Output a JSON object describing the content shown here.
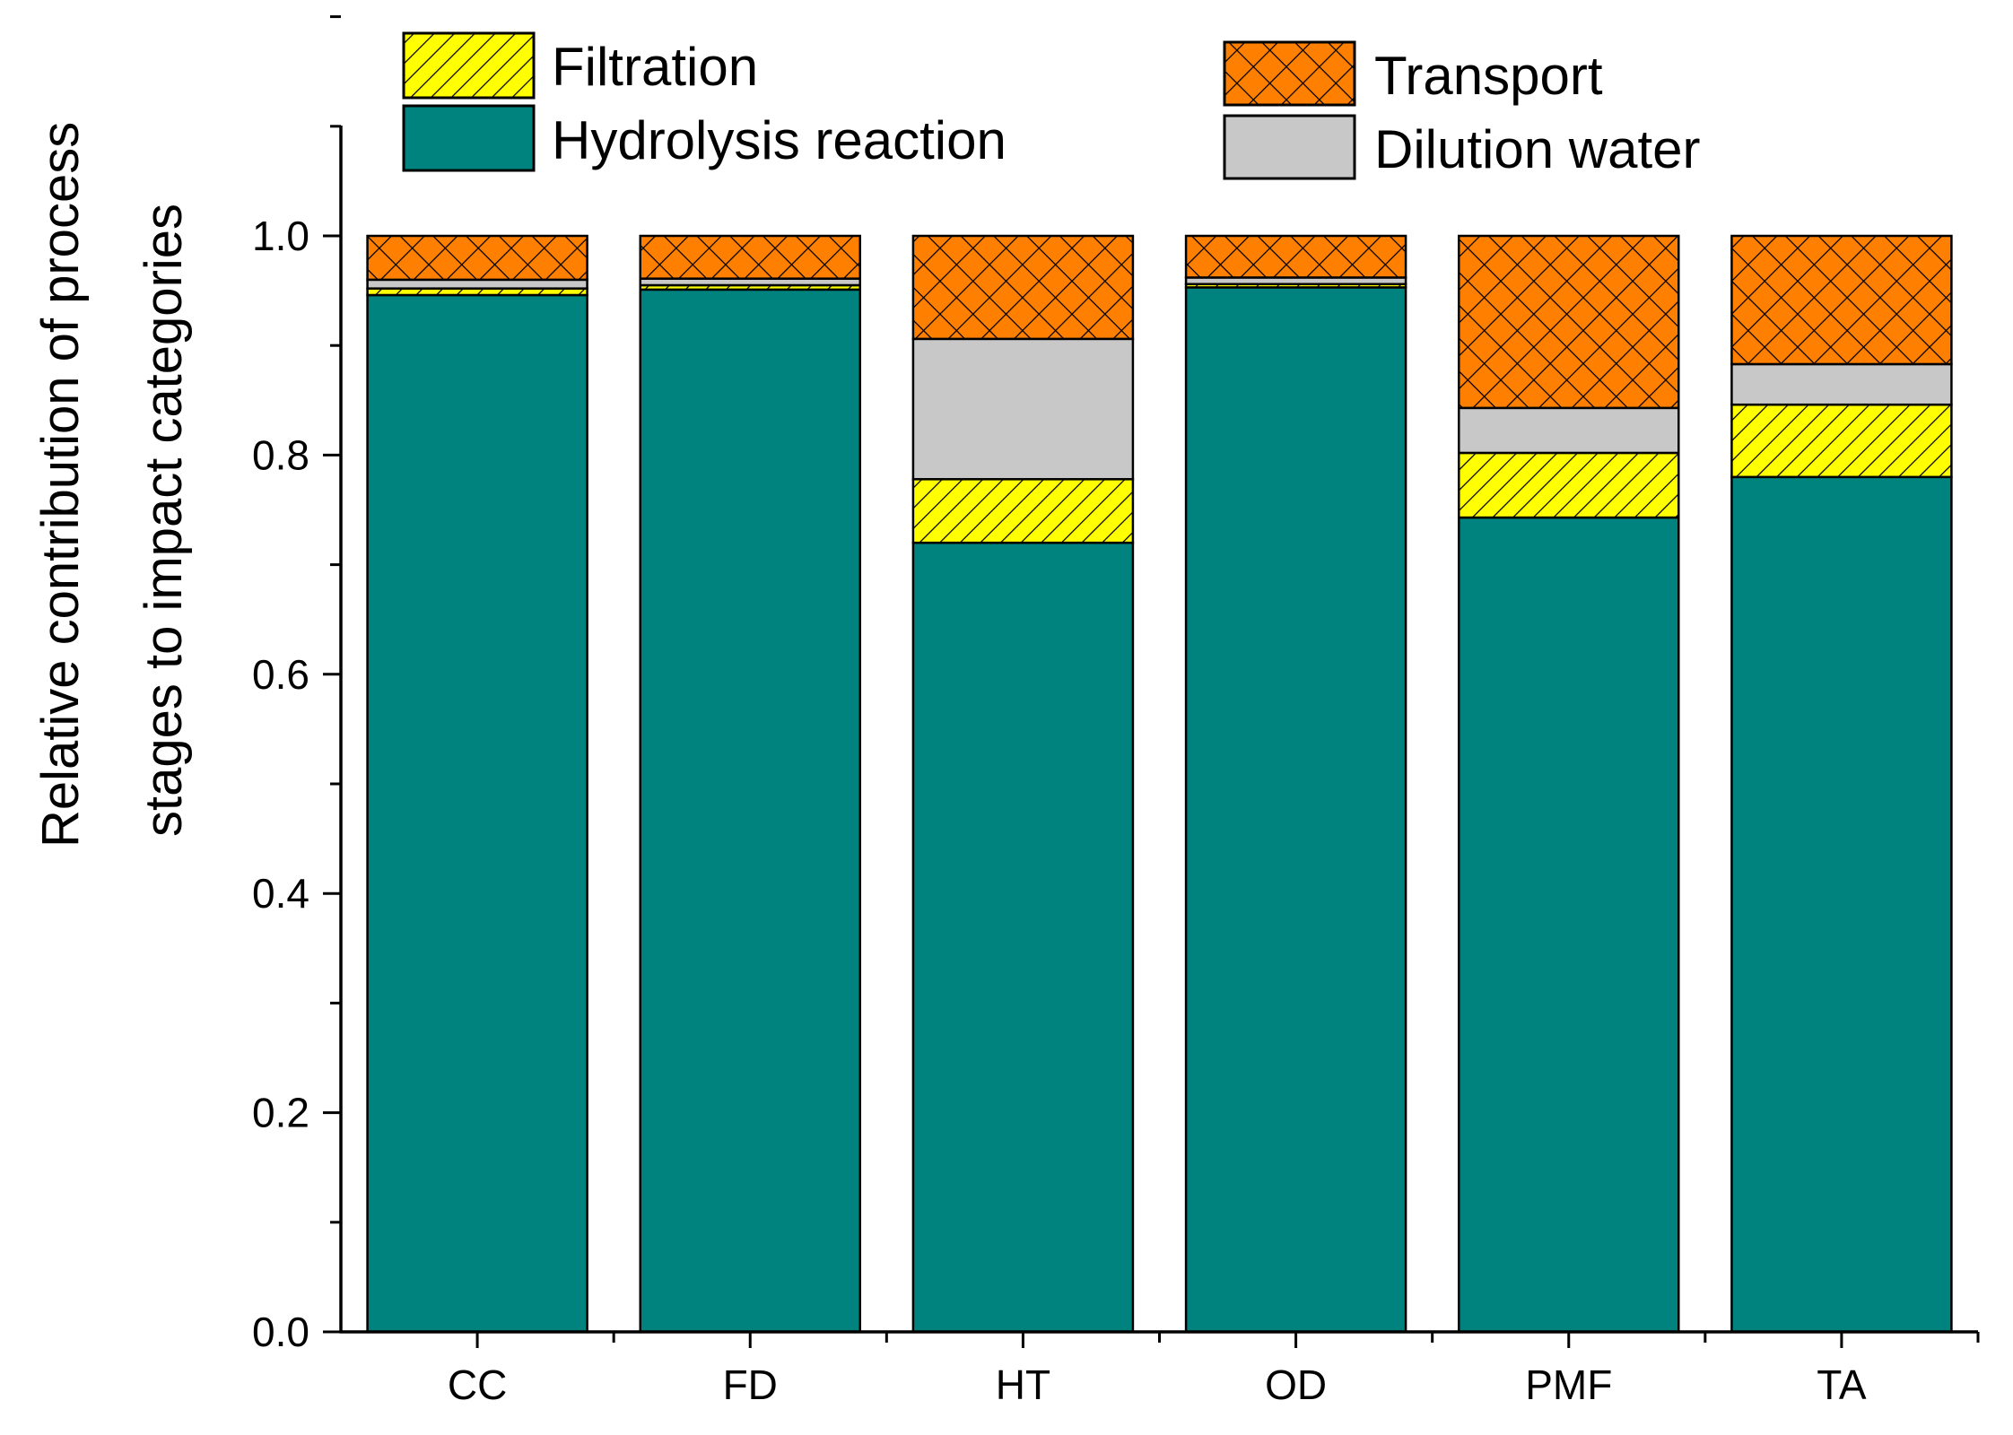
{
  "chart_data": {
    "type": "bar",
    "stacked": true,
    "categories": [
      "CC",
      "FD",
      "HT",
      "OD",
      "PMF",
      "TA"
    ],
    "series": [
      {
        "name": "Hydrolysis reaction",
        "color": "#00837f",
        "pattern": "solid",
        "values": [
          0.946,
          0.951,
          0.72,
          0.953,
          0.743,
          0.78
        ]
      },
      {
        "name": "Filtration",
        "color": "#ffff00",
        "pattern": "diagonal-hatch",
        "values": [
          0.006,
          0.004,
          0.058,
          0.003,
          0.059,
          0.066
        ]
      },
      {
        "name": "Dilution water",
        "color": "#c8c8c8",
        "pattern": "solid",
        "values": [
          0.008,
          0.006,
          0.128,
          0.006,
          0.041,
          0.037
        ]
      },
      {
        "name": "Transport",
        "color": "#ff8000",
        "pattern": "crosshatch",
        "values": [
          0.04,
          0.039,
          0.094,
          0.038,
          0.157,
          0.117
        ]
      }
    ],
    "title": "",
    "xlabel": "",
    "ylabel_lines": [
      "Relative contribution of process",
      "stages to impact categories"
    ],
    "ylim": [
      0,
      1.1
    ],
    "yticks": [
      "0.0",
      "0.2",
      "0.4",
      "0.6",
      "0.8",
      "1.0"
    ],
    "legend": {
      "placement": "top",
      "items": [
        "Filtration",
        "Hydrolysis reaction",
        "Transport",
        "Dilution water"
      ]
    }
  }
}
